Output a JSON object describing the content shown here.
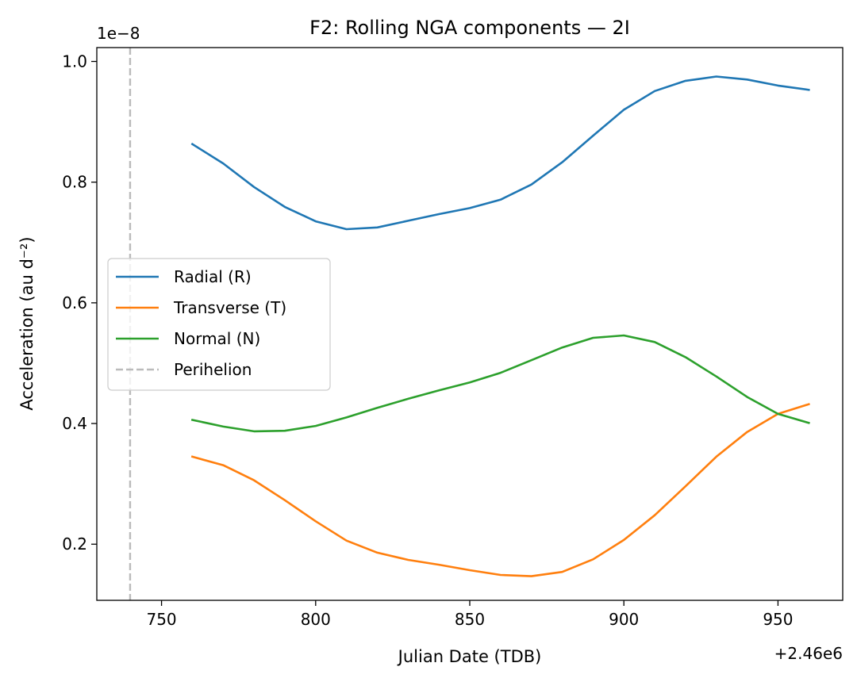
{
  "chart_data": {
    "type": "line",
    "title": "F2: Rolling NGA components — 2I",
    "xlabel": "Julian Date (TDB)",
    "ylabel": "Acceleration (au d⁻²)",
    "x_offset_label": "+2.46e6",
    "y_scale_label": "1e−8",
    "xlim": [
      729,
      971
    ],
    "ylim": [
      0.107,
      1.023
    ],
    "xticks": [
      750,
      800,
      850,
      900,
      950
    ],
    "yticks": [
      0.2,
      0.4,
      0.6,
      0.8,
      1.0
    ],
    "ytick_labels": [
      "0.2",
      "0.4",
      "0.6",
      "0.8",
      "1.0"
    ],
    "legend_position": "center-left",
    "x": [
      760,
      770,
      780,
      790,
      800,
      810,
      820,
      830,
      840,
      850,
      860,
      870,
      880,
      890,
      900,
      910,
      920,
      930,
      940,
      950,
      960
    ],
    "series": [
      {
        "name": "Radial (R)",
        "color": "#1f77b4",
        "values": [
          0.863,
          0.831,
          0.792,
          0.759,
          0.735,
          0.722,
          0.725,
          0.736,
          0.747,
          0.757,
          0.771,
          0.796,
          0.833,
          0.877,
          0.92,
          0.951,
          0.968,
          0.975,
          0.97,
          0.96,
          0.953
        ]
      },
      {
        "name": "Transverse (T)",
        "color": "#ff7f0e",
        "values": [
          0.345,
          0.331,
          0.306,
          0.273,
          0.238,
          0.206,
          0.186,
          0.174,
          0.166,
          0.157,
          0.149,
          0.147,
          0.154,
          0.175,
          0.207,
          0.248,
          0.296,
          0.345,
          0.386,
          0.416,
          0.432
        ]
      },
      {
        "name": "Normal (N)",
        "color": "#2ca02c",
        "values": [
          0.406,
          0.395,
          0.387,
          0.388,
          0.396,
          0.41,
          0.426,
          0.441,
          0.455,
          0.468,
          0.484,
          0.505,
          0.526,
          0.542,
          0.546,
          0.535,
          0.51,
          0.478,
          0.444,
          0.416,
          0.401
        ]
      }
    ],
    "vlines": [
      {
        "name": "Perihelion",
        "x": 739.8,
        "color": "#bbbbbb",
        "style": "dashed"
      }
    ]
  }
}
